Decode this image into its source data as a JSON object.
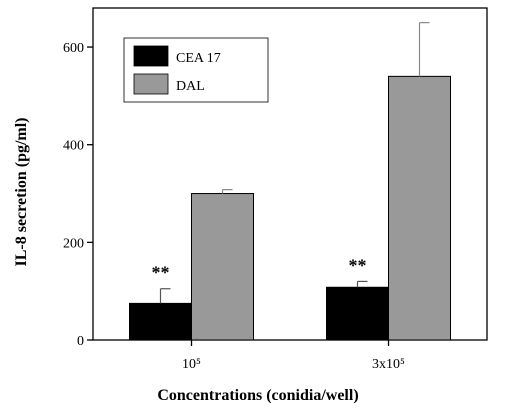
{
  "chart_data": {
    "type": "bar",
    "categories": [
      "10⁵",
      "3x10⁵"
    ],
    "series": [
      {
        "name": "CEA 17",
        "color": "#000000",
        "values": [
          75,
          108
        ],
        "errors": [
          30,
          12
        ]
      },
      {
        "name": "DAL",
        "color": "#999999",
        "values": [
          300,
          540
        ],
        "errors": [
          8,
          110
        ]
      }
    ],
    "xlabel": "Concentrations (conidia/well)",
    "ylabel": "IL-8 secretion (pg/ml)",
    "ylim": [
      0,
      680
    ],
    "yticks": [
      0,
      200,
      400,
      600
    ],
    "ytick_labels": [
      "0",
      "200",
      "400",
      "600"
    ],
    "annotations": [
      {
        "text": "**",
        "category_index": 0,
        "series_index": 0
      },
      {
        "text": "**",
        "category_index": 1,
        "series_index": 0
      }
    ],
    "grid": false,
    "legend_position": "top-left"
  }
}
